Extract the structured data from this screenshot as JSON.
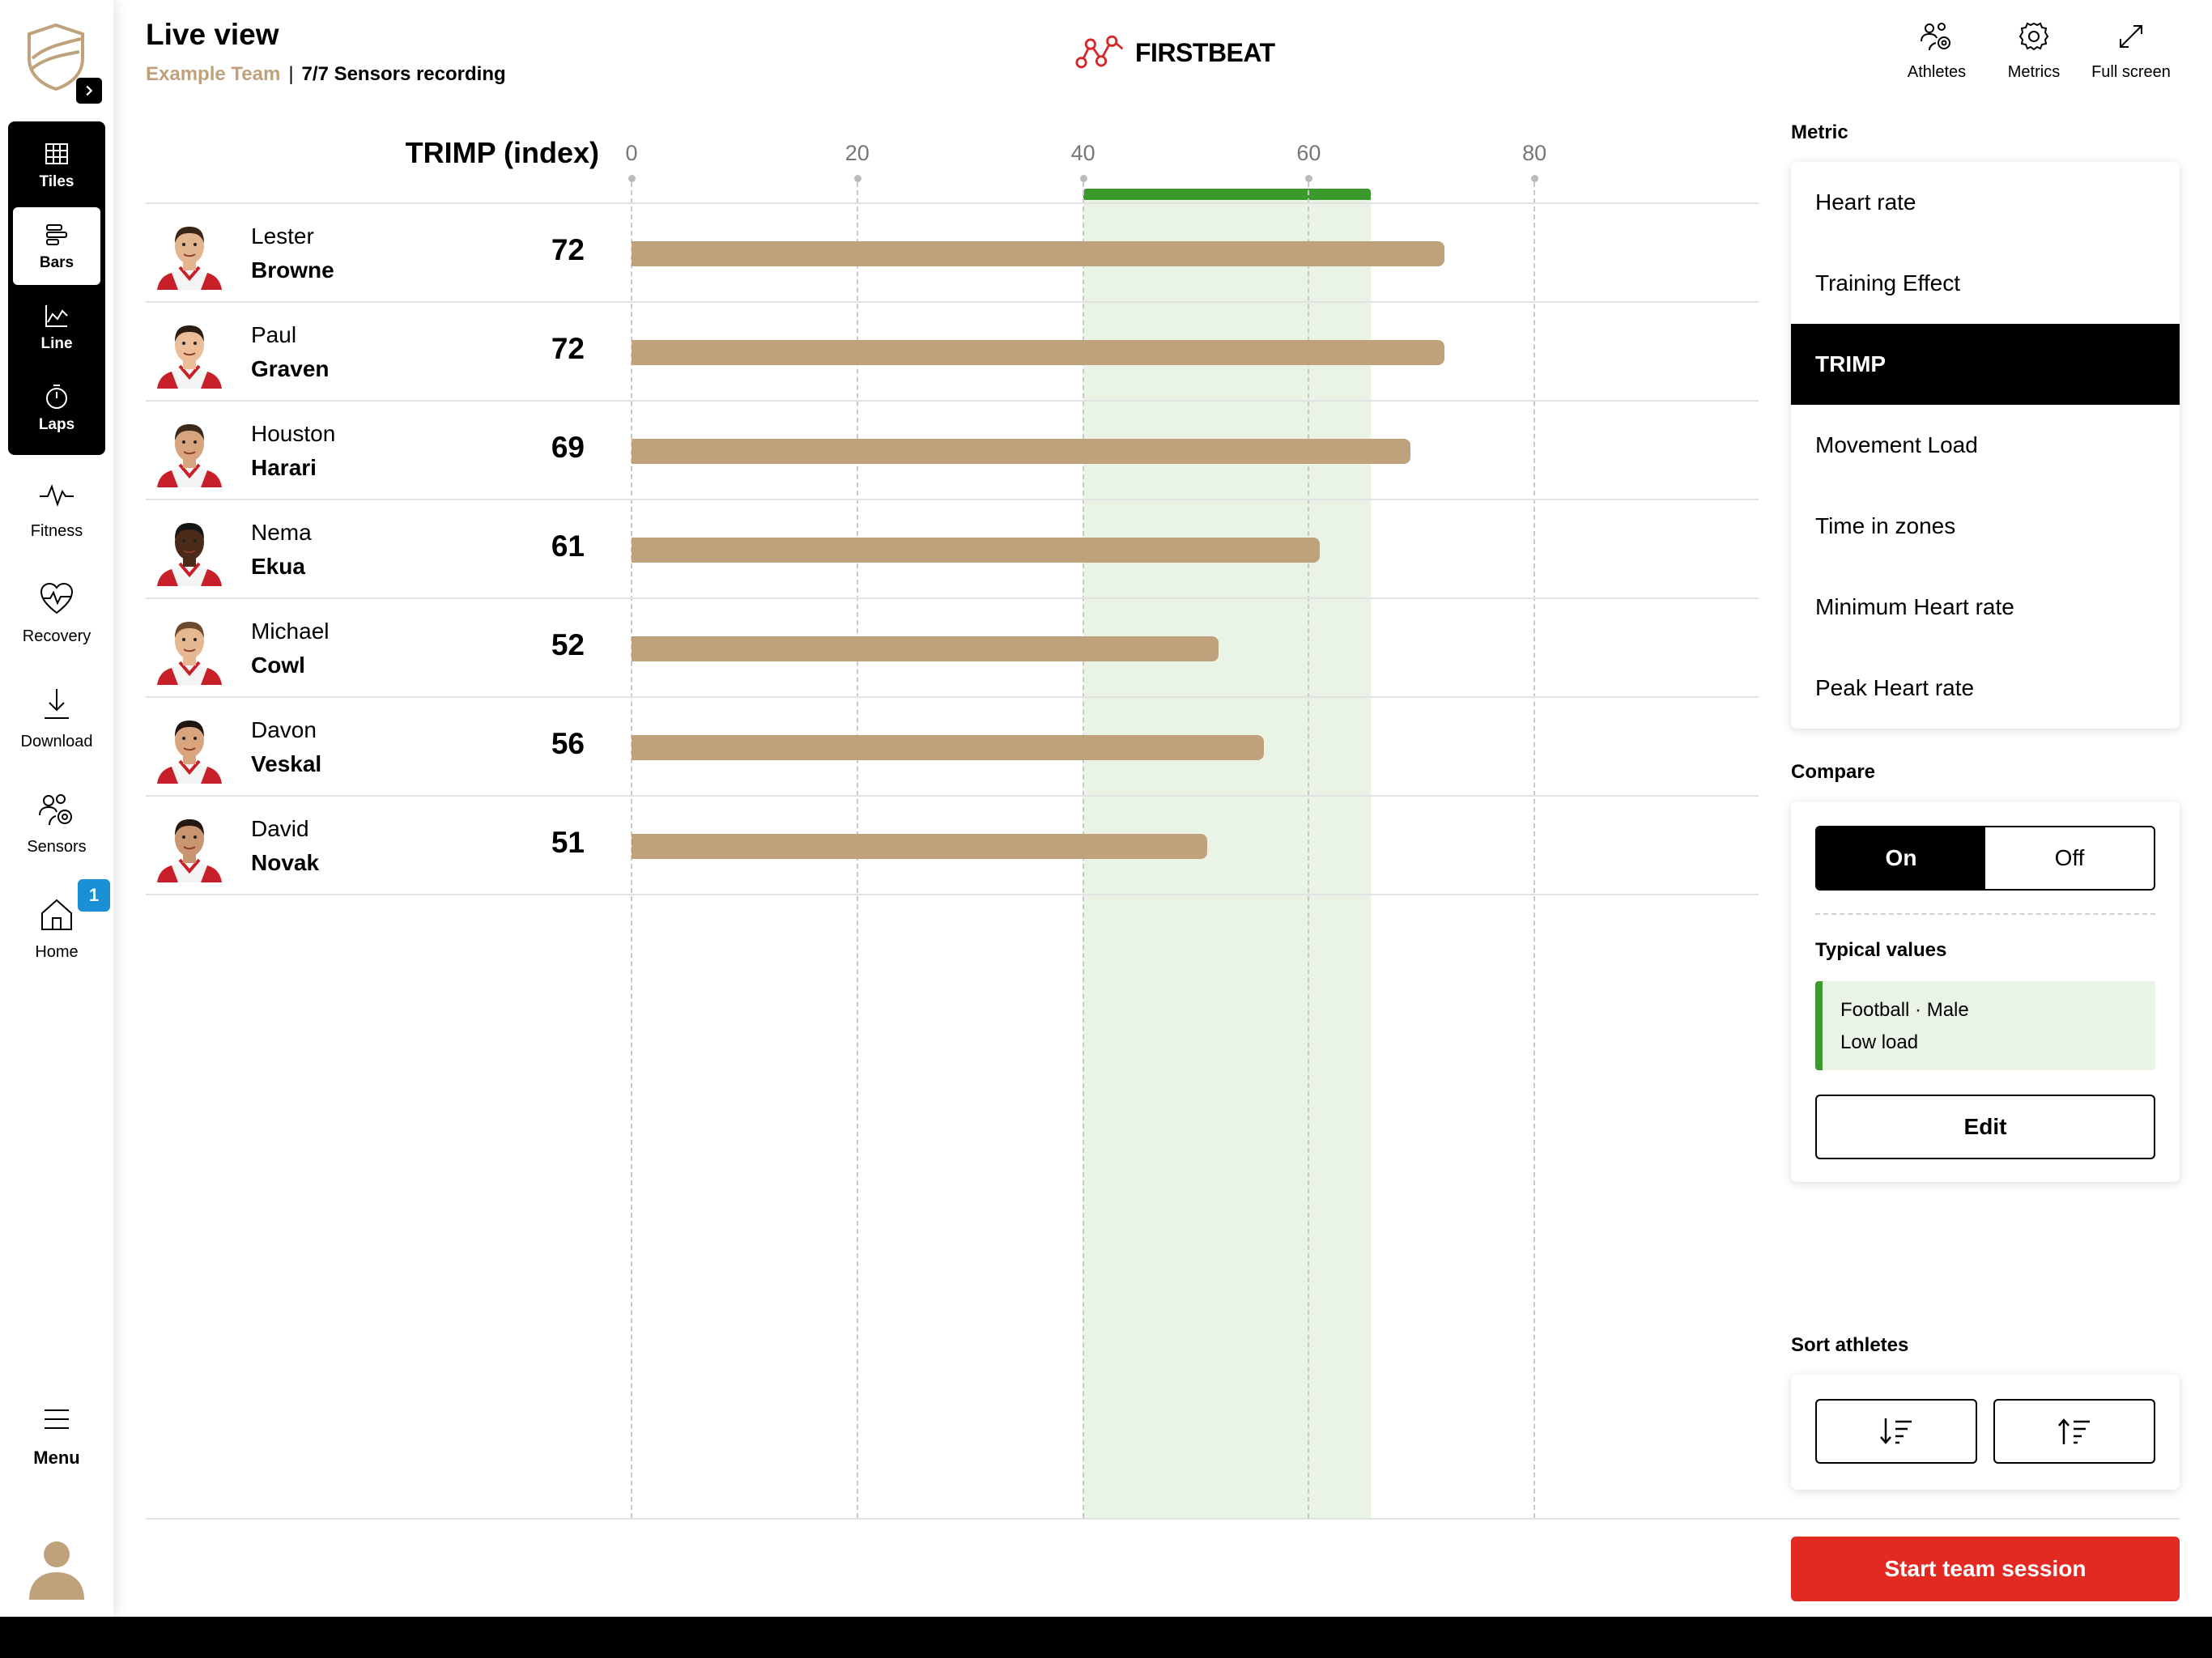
{
  "header": {
    "title": "Live view",
    "team_name": "Example Team",
    "separator": "|",
    "sensors_status": "7/7 Sensors recording",
    "brand": "FIRSTBEAT"
  },
  "top_actions": [
    {
      "label": "Athletes",
      "icon": "athletes-icon"
    },
    {
      "label": "Metrics",
      "icon": "gear-icon"
    },
    {
      "label": "Full screen",
      "icon": "expand-icon"
    }
  ],
  "sidebar": {
    "views": [
      {
        "label": "Tiles",
        "icon": "grid-icon",
        "active": false
      },
      {
        "label": "Bars",
        "icon": "bars-icon",
        "active": true
      },
      {
        "label": "Line",
        "icon": "line-chart-icon",
        "active": false
      },
      {
        "label": "Laps",
        "icon": "stopwatch-icon",
        "active": false
      }
    ],
    "nav": [
      {
        "label": "Fitness",
        "icon": "heartbeat-icon"
      },
      {
        "label": "Recovery",
        "icon": "heart-pulse-icon"
      },
      {
        "label": "Download",
        "icon": "download-icon"
      },
      {
        "label": "Sensors",
        "icon": "sensors-icon"
      },
      {
        "label": "Home",
        "icon": "home-icon"
      }
    ],
    "home_badge": "1",
    "menu_label": "Menu"
  },
  "chart_data": {
    "type": "bar",
    "orientation": "horizontal",
    "title": "TRIMP (index)",
    "xlim": [
      0,
      100
    ],
    "ticks": [
      0,
      20,
      40,
      60,
      80
    ],
    "grid": true,
    "reference_band": {
      "from": 40,
      "to": 65.5,
      "color": "#3c9a2c"
    },
    "bar_color": "#bfa27c",
    "categories": [
      "Lester Browne",
      "Paul Graven",
      "Houston Harari",
      "Nema Ekua",
      "Michael Cowl",
      "Davon Veskal",
      "David Novak"
    ],
    "values": [
      72,
      72,
      69,
      61,
      52,
      56,
      51
    ]
  },
  "athletes": [
    {
      "first": "Lester",
      "last": "Browne",
      "value": "72"
    },
    {
      "first": "Paul",
      "last": "Graven",
      "value": "72"
    },
    {
      "first": "Houston",
      "last": "Harari",
      "value": "69"
    },
    {
      "first": "Nema",
      "last": "Ekua",
      "value": "61"
    },
    {
      "first": "Michael",
      "last": "Cowl",
      "value": "52"
    },
    {
      "first": "Davon",
      "last": "Veskal",
      "value": "56"
    },
    {
      "first": "David",
      "last": "Novak",
      "value": "51"
    }
  ],
  "metric_panel": {
    "heading": "Metric",
    "items": [
      "Heart rate",
      "Training Effect",
      "TRIMP",
      "Movement Load",
      "Time in zones",
      "Minimum Heart rate",
      "Peak Heart rate"
    ],
    "selected": "TRIMP"
  },
  "compare": {
    "heading": "Compare",
    "on_label": "On",
    "off_label": "Off",
    "state": "On",
    "typical_heading": "Typical values",
    "typical_line1": "Football · Male",
    "typical_line2": "Low load",
    "edit_label": "Edit"
  },
  "sort": {
    "heading": "Sort athletes",
    "descending_icon": "sort-descending-icon",
    "ascending_icon": "sort-ascending-icon"
  },
  "start_button": "Start team session",
  "colors": {
    "accent_gold": "#bfa27c",
    "zone_green": "#3c9a2c",
    "start_red": "#e32a22",
    "badge_blue": "#1a8fd6"
  }
}
